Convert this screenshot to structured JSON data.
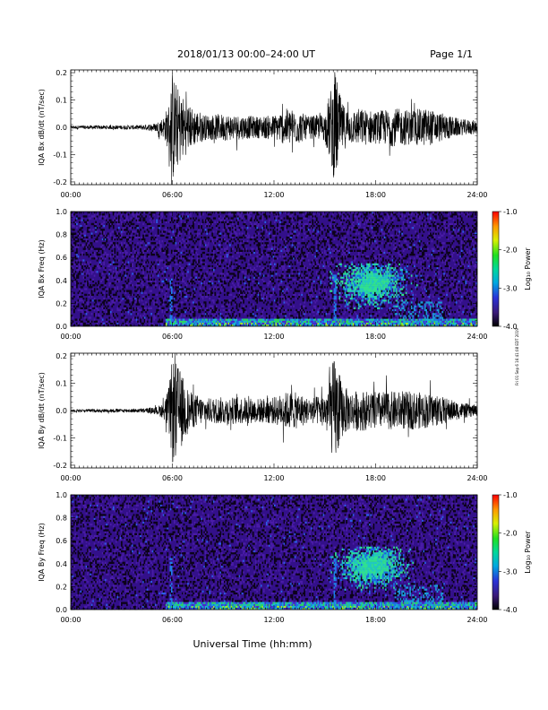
{
  "header": {
    "title": "2018/01/13  00:00–24:00 UT",
    "page": "Page 1/1"
  },
  "footer": {
    "xlabel": "Universal Time (hh:mm)",
    "side_stamp": "Fri 01 Sep 6 16:41:08 EDT 2019"
  },
  "colorbar": {
    "label": "Log₁₀ Power",
    "ticks": [
      "-1.0",
      "-2.0",
      "-3.0",
      "-4.0"
    ],
    "range": [
      -4.0,
      -1.0
    ]
  },
  "chart_data": [
    {
      "type": "line",
      "title": "",
      "ylabel": "IQA Bx dB/dt (nT/sec)",
      "xlabel": "",
      "x_ticks": [
        "00:00",
        "06:00",
        "12:00",
        "18:00",
        "24:00"
      ],
      "y_ticks": [
        "0.2",
        "0.1",
        "0.0",
        "-0.1",
        "-0.2"
      ],
      "xlim": [
        0,
        24
      ],
      "ylim": [
        -0.21,
        0.21
      ],
      "envelope": {
        "hours": [
          0,
          4,
          5,
          5.5,
          5.8,
          6.0,
          6.3,
          7,
          8,
          9,
          10,
          11,
          12,
          12.8,
          13.5,
          14,
          15,
          15.6,
          16,
          16.5,
          17,
          18,
          19,
          20,
          21,
          22,
          23,
          24
        ],
        "amplitude": [
          0.006,
          0.008,
          0.015,
          0.04,
          0.09,
          0.21,
          0.15,
          0.08,
          0.045,
          0.05,
          0.045,
          0.04,
          0.045,
          0.07,
          0.06,
          0.04,
          0.05,
          0.21,
          0.09,
          0.06,
          0.07,
          0.06,
          0.07,
          0.065,
          0.07,
          0.05,
          0.03,
          0.025
        ]
      }
    },
    {
      "type": "heatmap",
      "title": "",
      "ylabel": "IQA Bx Freq (Hz)",
      "xlabel": "",
      "x_ticks": [
        "00:00",
        "06:00",
        "12:00",
        "18:00",
        "24:00"
      ],
      "y_ticks": [
        "1.0",
        "0.8",
        "0.6",
        "0.4",
        "0.2",
        "0.0"
      ],
      "xlim": [
        0,
        24
      ],
      "ylim": [
        0,
        1.0
      ],
      "zlim": [
        -4.0,
        -1.0
      ]
    },
    {
      "type": "line",
      "title": "",
      "ylabel": "IQA By dB/dt (nT/sec)",
      "xlabel": "",
      "x_ticks": [
        "00:00",
        "06:00",
        "12:00",
        "18:00",
        "24:00"
      ],
      "y_ticks": [
        "0.2",
        "0.1",
        "0.0",
        "-0.1",
        "-0.2"
      ],
      "xlim": [
        0,
        24
      ],
      "ylim": [
        -0.21,
        0.21
      ],
      "envelope": {
        "hours": [
          0,
          4,
          5,
          5.5,
          5.8,
          6.0,
          6.3,
          7,
          8,
          9,
          10,
          11,
          12,
          12.8,
          13.5,
          14,
          15,
          15.6,
          16,
          16.5,
          17,
          18,
          19,
          20,
          21,
          22,
          23,
          24
        ],
        "amplitude": [
          0.005,
          0.007,
          0.012,
          0.03,
          0.09,
          0.2,
          0.17,
          0.07,
          0.045,
          0.05,
          0.05,
          0.045,
          0.05,
          0.07,
          0.065,
          0.045,
          0.06,
          0.21,
          0.1,
          0.07,
          0.075,
          0.07,
          0.07,
          0.07,
          0.065,
          0.05,
          0.03,
          0.02
        ]
      }
    },
    {
      "type": "heatmap",
      "title": "",
      "ylabel": "IQA By Freq (Hz)",
      "xlabel": "",
      "x_ticks": [
        "00:00",
        "06:00",
        "12:00",
        "18:00",
        "24:00"
      ],
      "y_ticks": [
        "1.0",
        "0.8",
        "0.6",
        "0.4",
        "0.2",
        "0.0"
      ],
      "xlim": [
        0,
        24
      ],
      "ylim": [
        0,
        1.0
      ],
      "zlim": [
        -4.0,
        -1.0
      ]
    }
  ]
}
